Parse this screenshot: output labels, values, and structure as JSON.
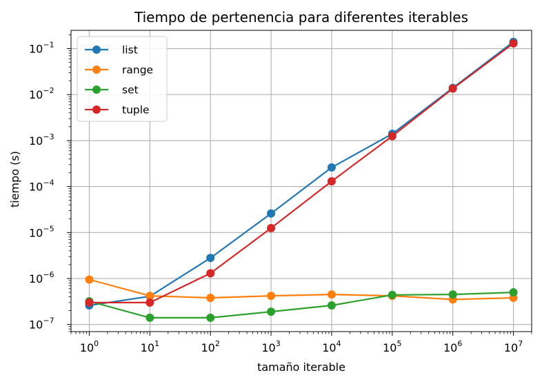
{
  "chart_data": {
    "type": "line",
    "title": "Tiempo de pertenencia para diferentes iterables",
    "xlabel": "tamaño iterable",
    "ylabel": "tiempo (s)",
    "xscale": "log",
    "yscale": "log",
    "xlim": [
      0.5,
      20000000
    ],
    "ylim": [
      7e-08,
      0.25
    ],
    "grid": true,
    "legend_position": "top-left",
    "x": [
      1,
      10,
      100,
      1000,
      10000,
      100000,
      1000000,
      10000000
    ],
    "x_tick_base": "10",
    "x_tick_exponents": [
      "0",
      "1",
      "2",
      "3",
      "4",
      "5",
      "6",
      "7"
    ],
    "y_ticks": [
      1e-07,
      1e-06,
      1e-05,
      0.0001,
      0.001,
      0.01,
      0.1
    ],
    "y_tick_base": "10",
    "y_tick_exponents": [
      "−7",
      "−6",
      "−5",
      "−4",
      "−3",
      "−2",
      "−1"
    ],
    "series": [
      {
        "name": "list",
        "color": "#1f77b4",
        "values": [
          2.6e-07,
          4.1e-07,
          2.8e-06,
          2.6e-05,
          0.00026,
          0.0014,
          0.014,
          0.14
        ]
      },
      {
        "name": "range",
        "color": "#ff7f0e",
        "values": [
          9.5e-07,
          4.2e-07,
          3.8e-07,
          4.2e-07,
          4.5e-07,
          4.2e-07,
          3.5e-07,
          3.8e-07
        ]
      },
      {
        "name": "set",
        "color": "#2ca02c",
        "values": [
          3.2e-07,
          1.4e-07,
          1.4e-07,
          1.9e-07,
          2.6e-07,
          4.4e-07,
          4.5e-07,
          5e-07
        ]
      },
      {
        "name": "tuple",
        "color": "#d62728",
        "values": [
          3e-07,
          3e-07,
          1.3e-06,
          1.25e-05,
          0.00013,
          0.00125,
          0.0135,
          0.13
        ]
      }
    ]
  }
}
